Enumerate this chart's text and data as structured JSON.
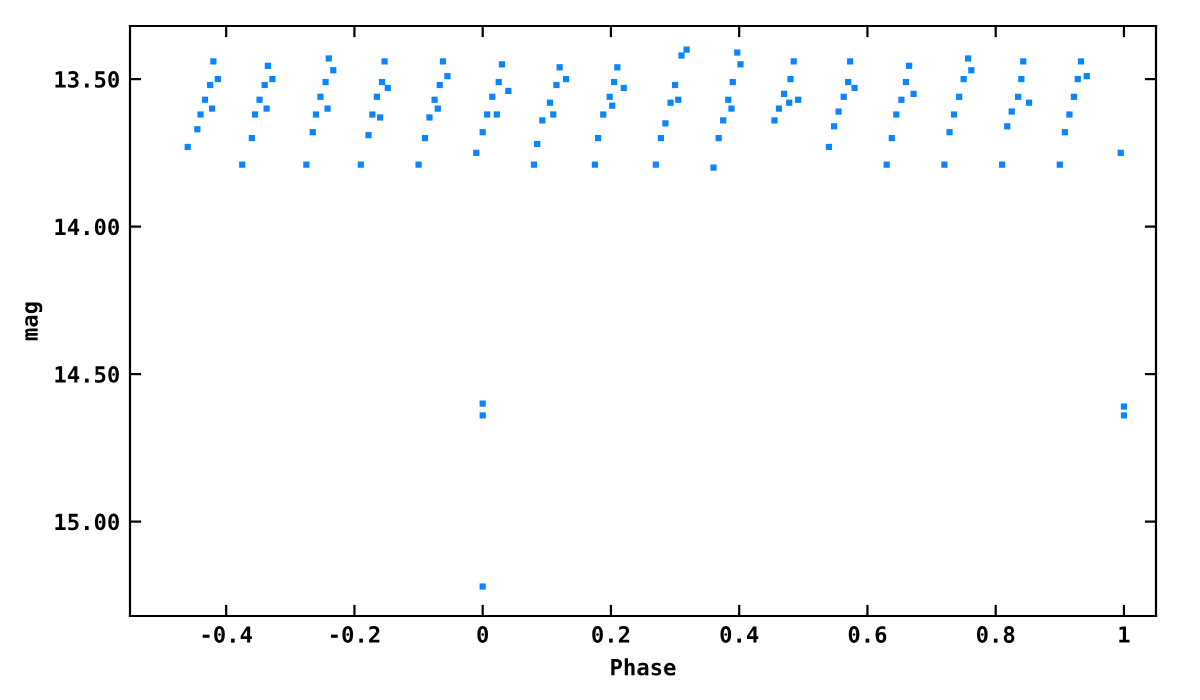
{
  "chart_data": {
    "type": "scatter",
    "xlabel": "Phase",
    "ylabel": "mag",
    "xlim": [
      -0.55,
      1.05
    ],
    "ylim": [
      15.32,
      13.32
    ],
    "xticks": [
      -0.4,
      -0.2,
      0,
      0.2,
      0.4,
      0.6,
      0.8,
      1
    ],
    "yticks": [
      {
        "value": 13.5,
        "label": "13.50"
      },
      {
        "value": 14.0,
        "label": "14.00"
      },
      {
        "value": 14.5,
        "label": "14.50"
      },
      {
        "value": 15.0,
        "label": "15.00"
      }
    ],
    "marker": "square",
    "grid": false,
    "legend": false,
    "series": [
      {
        "color": "#0a84ff",
        "x": [
          -0.46,
          -0.445,
          -0.44,
          -0.433,
          -0.425,
          -0.42,
          -0.413,
          -0.422,
          -0.375,
          -0.36,
          -0.355,
          -0.348,
          -0.34,
          -0.335,
          -0.328,
          -0.337,
          -0.275,
          -0.265,
          -0.26,
          -0.253,
          -0.245,
          -0.24,
          -0.233,
          -0.242,
          -0.19,
          -0.178,
          -0.172,
          -0.165,
          -0.157,
          -0.153,
          -0.148,
          -0.16,
          -0.1,
          -0.09,
          -0.083,
          -0.075,
          -0.067,
          -0.062,
          -0.055,
          -0.07,
          -0.01,
          0.0,
          0.007,
          0.015,
          0.025,
          0.03,
          0.04,
          0.022,
          0.08,
          0.085,
          0.093,
          0.105,
          0.115,
          0.12,
          0.13,
          0.11,
          0.175,
          0.18,
          0.188,
          0.198,
          0.205,
          0.21,
          0.22,
          0.202,
          0.27,
          0.278,
          0.285,
          0.293,
          0.3,
          0.31,
          0.318,
          0.305,
          0.36,
          0.368,
          0.375,
          0.383,
          0.39,
          0.397,
          0.402,
          0.388,
          0.455,
          0.462,
          0.47,
          0.48,
          0.485,
          0.492,
          0.478,
          0.54,
          0.548,
          0.555,
          0.563,
          0.57,
          0.573,
          0.58,
          0.63,
          0.638,
          0.645,
          0.653,
          0.66,
          0.665,
          0.672,
          0.72,
          0.728,
          0.735,
          0.743,
          0.75,
          0.757,
          0.762,
          0.81,
          0.818,
          0.825,
          0.835,
          0.84,
          0.843,
          0.852,
          0.9,
          0.908,
          0.915,
          0.922,
          0.928,
          0.933,
          0.942,
          0.995,
          0,
          0,
          0,
          1,
          1
        ],
        "values": [
          13.73,
          13.67,
          13.62,
          13.57,
          13.52,
          13.44,
          13.5,
          13.6,
          13.79,
          13.7,
          13.62,
          13.57,
          13.52,
          13.455,
          13.5,
          13.6,
          13.79,
          13.68,
          13.62,
          13.56,
          13.51,
          13.43,
          13.47,
          13.6,
          13.79,
          13.69,
          13.62,
          13.56,
          13.51,
          13.44,
          13.53,
          13.63,
          13.79,
          13.7,
          13.63,
          13.57,
          13.52,
          13.44,
          13.49,
          13.6,
          13.75,
          13.68,
          13.62,
          13.56,
          13.51,
          13.45,
          13.54,
          13.62,
          13.79,
          13.72,
          13.64,
          13.58,
          13.52,
          13.46,
          13.5,
          13.62,
          13.79,
          13.7,
          13.62,
          13.56,
          13.51,
          13.46,
          13.53,
          13.59,
          13.79,
          13.7,
          13.65,
          13.58,
          13.52,
          13.42,
          13.4,
          13.57,
          13.8,
          13.7,
          13.64,
          13.57,
          13.51,
          13.41,
          13.45,
          13.6,
          13.64,
          13.6,
          13.55,
          13.5,
          13.44,
          13.57,
          13.58,
          13.73,
          13.66,
          13.61,
          13.56,
          13.51,
          13.44,
          13.53,
          13.79,
          13.7,
          13.62,
          13.57,
          13.51,
          13.455,
          13.55,
          13.79,
          13.68,
          13.62,
          13.56,
          13.5,
          13.43,
          13.47,
          13.79,
          13.66,
          13.61,
          13.56,
          13.5,
          13.44,
          13.58,
          13.79,
          13.68,
          13.62,
          13.56,
          13.5,
          13.44,
          13.49,
          13.75,
          14.6,
          14.64,
          15.22,
          14.61,
          14.64
        ]
      }
    ]
  }
}
